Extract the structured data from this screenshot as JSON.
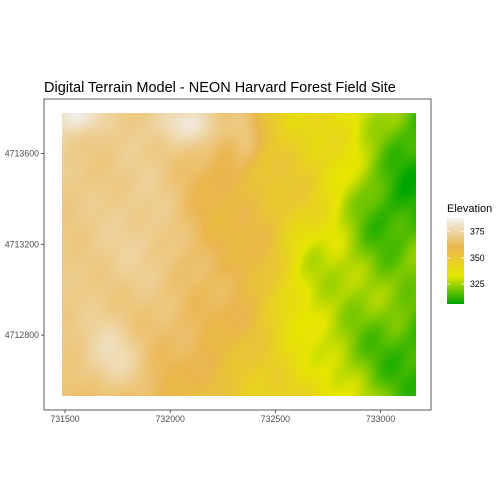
{
  "chart_data": {
    "type": "heatmap",
    "title": "Digital Terrain Model - NEON Harvard Forest Field Site",
    "xlabel": "",
    "ylabel": "",
    "x_ticks": [
      731500,
      732000,
      732500,
      733000
    ],
    "y_ticks": [
      4712800,
      4713200,
      4713600
    ],
    "x_ticklabels": [
      "731500",
      "732000",
      "732500",
      "733000"
    ],
    "y_ticklabels": [
      "4712800",
      "4713200",
      "4713600"
    ],
    "xlim": [
      731400,
      733240
    ],
    "ylim": [
      4712470,
      4713840
    ],
    "extent": {
      "x": [
        731453,
        733150
      ],
      "y": [
        4712505,
        4713735
      ]
    },
    "grid": false,
    "legend": {
      "title": "Elevation",
      "placement": "right",
      "breaks": [
        325,
        350,
        375
      ],
      "labels": [
        "325",
        "350",
        "375"
      ],
      "range": [
        306,
        388
      ]
    },
    "colors": {
      "low": "#00A600",
      "mid1": "#E6E600",
      "mid2": "#EAB64E",
      "high": "#F2F2F2"
    },
    "features": [
      {
        "x": 731700,
        "y": 4712700,
        "z": 385,
        "sx": 160,
        "sy": 190
      },
      {
        "x": 731520,
        "y": 4713720,
        "z": 386,
        "sx": 110,
        "sy": 70
      },
      {
        "x": 731850,
        "y": 4713050,
        "z": 373,
        "sx": 250,
        "sy": 300
      },
      {
        "x": 732060,
        "y": 4713690,
        "z": 374,
        "sx": 210,
        "sy": 90
      },
      {
        "x": 732320,
        "y": 4713620,
        "z": 369,
        "sx": 80,
        "sy": 140
      },
      {
        "x": 733000,
        "y": 4712700,
        "z": 306,
        "sx": 320,
        "sy": 280
      },
      {
        "x": 733050,
        "y": 4713250,
        "z": 318,
        "sx": 220,
        "sy": 280
      },
      {
        "x": 732650,
        "y": 4713050,
        "z": 326,
        "sx": 160,
        "sy": 240
      }
    ]
  }
}
